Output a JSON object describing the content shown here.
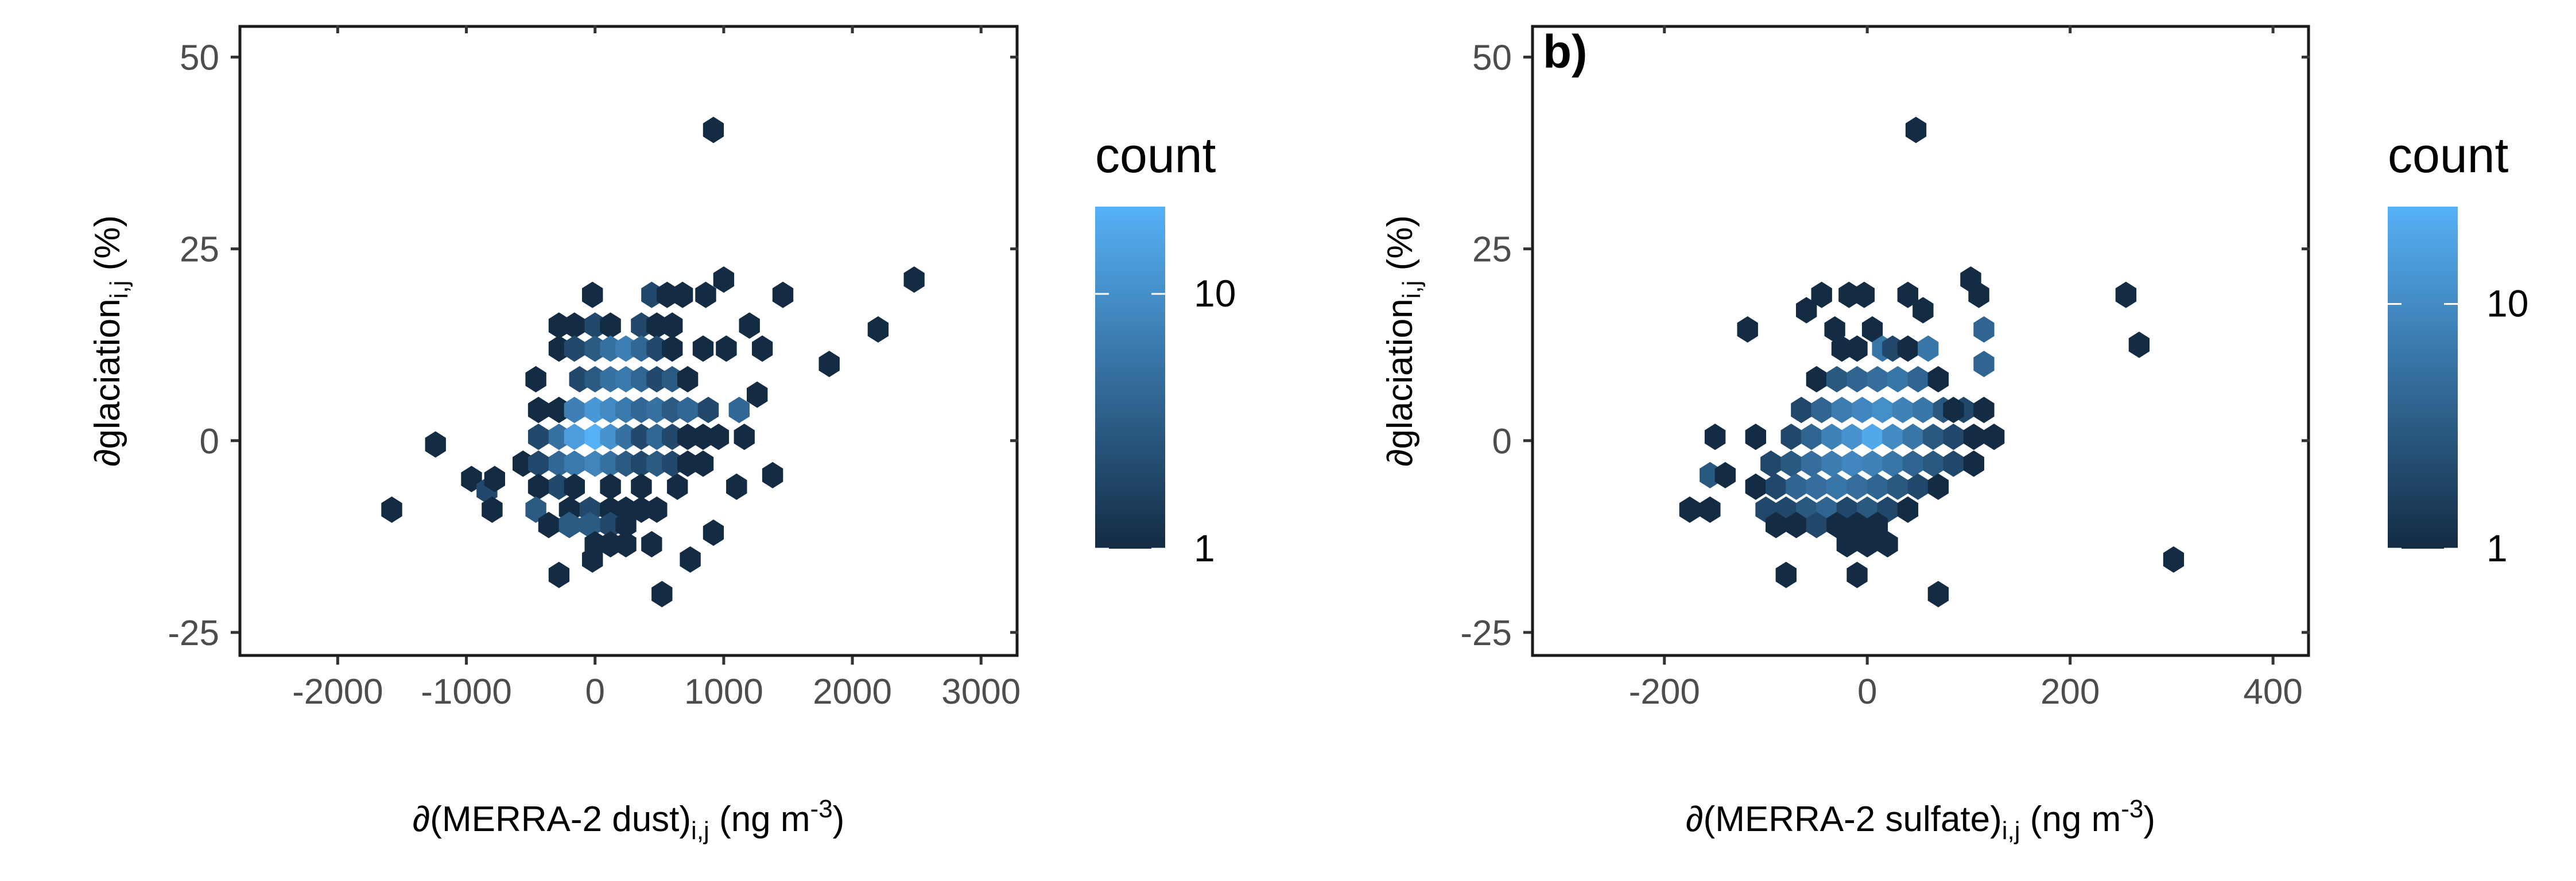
{
  "colors": {
    "panel_border": "#1a1a1a",
    "tick": "#333333",
    "tick_text": "#4d4d4d",
    "label_text": "#000000",
    "scale_low": "#132B43",
    "scale_high": "#56B1F7"
  },
  "chart_data": [
    {
      "type": "heatmap",
      "subtype": "hexbin",
      "panel_label": "",
      "title": "",
      "xlabel": "∂(MERRA-2 dust)i,j (ng m-3)",
      "xlabel_parts": {
        "pre": "∂(MERRA-2 dust)",
        "sub": "i,j",
        "mid": " (ng m",
        "sup": "-3",
        "post": ")"
      },
      "ylabel": "∂glaciationi,j (%)",
      "ylabel_parts": {
        "pre": "∂glaciation",
        "sub": "i,j",
        "post": " (%)"
      },
      "xlim": [
        -2760,
        3280
      ],
      "ylim": [
        -28,
        54
      ],
      "x_ticks": [
        -2000,
        -1000,
        0,
        1000,
        2000,
        3000
      ],
      "x_tick_labels": [
        "-2000",
        "-1000",
        "0",
        "1000",
        "2000",
        "3000"
      ],
      "y_ticks": [
        -25,
        0,
        25,
        50
      ],
      "y_tick_labels": [
        "-25",
        "0",
        "25",
        "50"
      ],
      "grid": false,
      "legend": {
        "title": "count",
        "placement": "right",
        "scale": "log",
        "range": [
          1,
          22
        ],
        "breaks": [
          1,
          10
        ],
        "break_labels": [
          "1",
          "10"
        ]
      },
      "bins": [
        [
          920,
          40.5,
          1
        ],
        [
          2480,
          21,
          1
        ],
        [
          2200,
          14.5,
          1
        ],
        [
          1820,
          10,
          1
        ],
        [
          1460,
          19,
          1
        ],
        [
          1000,
          21,
          1
        ],
        [
          -1580,
          -9,
          1
        ],
        [
          -1240,
          -0.5,
          1
        ],
        [
          -960,
          -5,
          1
        ],
        [
          -840,
          -6.5,
          2
        ],
        [
          -800,
          -9,
          1
        ],
        [
          -780,
          -5,
          1
        ],
        [
          -20,
          19,
          1
        ],
        [
          440,
          19,
          2
        ],
        [
          560,
          19,
          1
        ],
        [
          680,
          19,
          1
        ],
        [
          860,
          19,
          1
        ],
        [
          -280,
          15,
          1
        ],
        [
          -160,
          15,
          1
        ],
        [
          0,
          15,
          2
        ],
        [
          120,
          15,
          1
        ],
        [
          360,
          15,
          2
        ],
        [
          480,
          15,
          1
        ],
        [
          600,
          15,
          1
        ],
        [
          1200,
          15,
          1
        ],
        [
          -280,
          12,
          1
        ],
        [
          -160,
          12,
          2
        ],
        [
          0,
          12,
          3
        ],
        [
          120,
          12,
          5
        ],
        [
          240,
          12,
          7
        ],
        [
          360,
          12,
          4
        ],
        [
          480,
          12,
          2
        ],
        [
          600,
          12,
          1
        ],
        [
          840,
          12,
          1
        ],
        [
          1020,
          12,
          1
        ],
        [
          1300,
          12,
          1
        ],
        [
          -460,
          8,
          1
        ],
        [
          -120,
          8,
          2
        ],
        [
          0,
          8,
          3
        ],
        [
          120,
          8,
          5
        ],
        [
          240,
          8,
          6
        ],
        [
          360,
          8,
          4
        ],
        [
          480,
          8,
          2
        ],
        [
          600,
          8,
          3
        ],
        [
          720,
          8,
          1
        ],
        [
          -440,
          4,
          1
        ],
        [
          -280,
          4,
          1
        ],
        [
          -160,
          4,
          7
        ],
        [
          0,
          4,
          12
        ],
        [
          120,
          4,
          9
        ],
        [
          240,
          4,
          6
        ],
        [
          360,
          4,
          4
        ],
        [
          480,
          4,
          5
        ],
        [
          600,
          4,
          3
        ],
        [
          720,
          4,
          4
        ],
        [
          880,
          4,
          2
        ],
        [
          1120,
          4,
          4
        ],
        [
          1260,
          6,
          1
        ],
        [
          -440,
          0.5,
          2
        ],
        [
          -280,
          0.5,
          5
        ],
        [
          -160,
          0.5,
          14
        ],
        [
          0,
          0.5,
          22
        ],
        [
          120,
          0.5,
          11
        ],
        [
          240,
          0.5,
          5
        ],
        [
          360,
          0.5,
          2
        ],
        [
          480,
          0.5,
          4
        ],
        [
          600,
          0.5,
          2
        ],
        [
          720,
          0.5,
          1
        ],
        [
          840,
          0.5,
          1
        ],
        [
          960,
          0.5,
          1
        ],
        [
          1160,
          0.5,
          1
        ],
        [
          -560,
          -3,
          1
        ],
        [
          -440,
          -3,
          2
        ],
        [
          -280,
          -3,
          4
        ],
        [
          -160,
          -3,
          6
        ],
        [
          0,
          -3,
          8
        ],
        [
          120,
          -3,
          5
        ],
        [
          240,
          -3,
          3
        ],
        [
          360,
          -3,
          2
        ],
        [
          480,
          -3,
          3
        ],
        [
          600,
          -3,
          2
        ],
        [
          720,
          -3,
          1
        ],
        [
          840,
          -3,
          1
        ],
        [
          -440,
          -6,
          1
        ],
        [
          -280,
          -6,
          2
        ],
        [
          -160,
          -6,
          1
        ],
        [
          120,
          -6,
          1
        ],
        [
          360,
          -6,
          1
        ],
        [
          640,
          -6,
          1
        ],
        [
          1100,
          -6,
          1
        ],
        [
          1380,
          -4.5,
          1
        ],
        [
          -460,
          -9,
          3
        ],
        [
          -200,
          -9,
          1
        ],
        [
          -40,
          -9,
          2
        ],
        [
          120,
          -9,
          1
        ],
        [
          240,
          -9,
          1
        ],
        [
          360,
          -9,
          1
        ],
        [
          480,
          -9,
          1
        ],
        [
          -360,
          -11,
          1
        ],
        [
          -200,
          -11,
          3
        ],
        [
          -40,
          -11,
          3
        ],
        [
          120,
          -11,
          2
        ],
        [
          240,
          -11,
          1
        ],
        [
          920,
          -12,
          1
        ],
        [
          0,
          -13.5,
          1
        ],
        [
          120,
          -13.5,
          1
        ],
        [
          240,
          -13.5,
          1
        ],
        [
          440,
          -13.5,
          1
        ],
        [
          -20,
          -15.5,
          1
        ],
        [
          740,
          -15.5,
          1
        ],
        [
          -280,
          -17.5,
          1
        ],
        [
          520,
          -20,
          1
        ]
      ]
    },
    {
      "type": "heatmap",
      "subtype": "hexbin",
      "panel_label": "b)",
      "title": "",
      "xlabel": "∂(MERRA-2 sulfate)i,j (ng m-3)",
      "xlabel_parts": {
        "pre": "∂(MERRA-2 sulfate)",
        "sub": "i,j",
        "mid": " (ng m",
        "sup": "-3",
        "post": ")"
      },
      "ylabel": "∂glaciationi,j (%)",
      "ylabel_parts": {
        "pre": "∂glaciation",
        "sub": "i,j",
        "post": " (%)"
      },
      "xlim": [
        -330,
        435
      ],
      "ylim": [
        -28,
        54
      ],
      "x_ticks": [
        -200,
        0,
        200,
        400
      ],
      "x_tick_labels": [
        "-200",
        "0",
        "200",
        "400"
      ],
      "y_ticks": [
        -25,
        0,
        25,
        50
      ],
      "y_tick_labels": [
        "-25",
        "0",
        "25",
        "50"
      ],
      "grid": false,
      "legend": {
        "title": "count",
        "placement": "right",
        "scale": "log",
        "range": [
          1,
          25
        ],
        "breaks": [
          1,
          10
        ],
        "break_labels": [
          "1",
          "10"
        ]
      },
      "bins": [
        [
          48,
          40.5,
          1
        ],
        [
          -3,
          19,
          1
        ],
        [
          -45,
          19,
          1
        ],
        [
          -18,
          19,
          1
        ],
        [
          40,
          19,
          1
        ],
        [
          55,
          17,
          1
        ],
        [
          -60,
          17,
          1
        ],
        [
          102,
          21,
          1
        ],
        [
          110,
          19,
          1
        ],
        [
          -118,
          14.5,
          1
        ],
        [
          -32,
          14.5,
          1
        ],
        [
          5,
          14.5,
          1
        ],
        [
          255,
          19,
          1
        ],
        [
          268,
          12.5,
          1
        ],
        [
          -10,
          12,
          1
        ],
        [
          15,
          12,
          6
        ],
        [
          25,
          12,
          2
        ],
        [
          -25,
          12,
          1
        ],
        [
          40,
          12,
          1
        ],
        [
          60,
          12,
          6
        ],
        [
          115,
          14.5,
          4
        ],
        [
          115,
          10,
          4
        ],
        [
          -50,
          8,
          1
        ],
        [
          -30,
          8,
          3
        ],
        [
          -10,
          8,
          4
        ],
        [
          10,
          8,
          5
        ],
        [
          30,
          8,
          6
        ],
        [
          50,
          8,
          4
        ],
        [
          70,
          8,
          1
        ],
        [
          -65,
          4,
          2
        ],
        [
          -45,
          4,
          4
        ],
        [
          -25,
          4,
          7
        ],
        [
          -5,
          4,
          9
        ],
        [
          15,
          4,
          11
        ],
        [
          35,
          4,
          8
        ],
        [
          55,
          4,
          6
        ],
        [
          75,
          4,
          3
        ],
        [
          95,
          4,
          2
        ],
        [
          115,
          4,
          1
        ],
        [
          85,
          4,
          1
        ],
        [
          -75,
          0.5,
          2
        ],
        [
          -55,
          0.5,
          4
        ],
        [
          -35,
          0.5,
          8
        ],
        [
          -15,
          0.5,
          12
        ],
        [
          5,
          0.5,
          20
        ],
        [
          25,
          0.5,
          10
        ],
        [
          45,
          0.5,
          6
        ],
        [
          65,
          0.5,
          3
        ],
        [
          85,
          0.5,
          2
        ],
        [
          105,
          0.5,
          1
        ],
        [
          125,
          0.5,
          1
        ],
        [
          -150,
          0.5,
          1
        ],
        [
          -110,
          0.5,
          1
        ],
        [
          -95,
          -3,
          2
        ],
        [
          -75,
          -3,
          3
        ],
        [
          -55,
          -3,
          5
        ],
        [
          -35,
          -3,
          7
        ],
        [
          -15,
          -3,
          9
        ],
        [
          5,
          -3,
          8
        ],
        [
          25,
          -3,
          6
        ],
        [
          45,
          -3,
          4
        ],
        [
          65,
          -3,
          3
        ],
        [
          85,
          -3,
          2
        ],
        [
          105,
          -3,
          1
        ],
        [
          -155,
          -4.5,
          3
        ],
        [
          -140,
          -4.5,
          1
        ],
        [
          -110,
          -6,
          1
        ],
        [
          -90,
          -6,
          2
        ],
        [
          -70,
          -6,
          4
        ],
        [
          -50,
          -6,
          5
        ],
        [
          -30,
          -6,
          6
        ],
        [
          -10,
          -6,
          5
        ],
        [
          10,
          -6,
          4
        ],
        [
          30,
          -6,
          3
        ],
        [
          50,
          -6,
          2
        ],
        [
          70,
          -6,
          1
        ],
        [
          -175,
          -9,
          1
        ],
        [
          -155,
          -9,
          1
        ],
        [
          -100,
          -9,
          2
        ],
        [
          -80,
          -9,
          2
        ],
        [
          -60,
          -9,
          3
        ],
        [
          -40,
          -9,
          4
        ],
        [
          -20,
          -9,
          2
        ],
        [
          0,
          -9,
          3
        ],
        [
          20,
          -9,
          2
        ],
        [
          40,
          -9,
          1
        ],
        [
          -90,
          -11,
          1
        ],
        [
          -70,
          -11,
          1
        ],
        [
          -50,
          -11,
          2
        ],
        [
          -30,
          -11,
          1
        ],
        [
          -10,
          -11,
          1
        ],
        [
          10,
          -11,
          1
        ],
        [
          -20,
          -13.5,
          1
        ],
        [
          0,
          -13.5,
          1
        ],
        [
          20,
          -13.5,
          1
        ],
        [
          -80,
          -17.5,
          1
        ],
        [
          -10,
          -17.5,
          1
        ],
        [
          70,
          -20,
          1
        ],
        [
          302,
          -15.5,
          1
        ]
      ]
    }
  ]
}
